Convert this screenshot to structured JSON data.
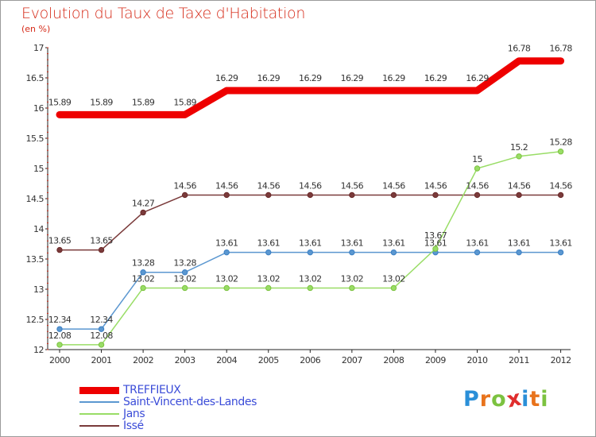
{
  "header": {
    "title": "Evolution du Taux de Taxe d'Habitation",
    "unit": "(en %)"
  },
  "logo": {
    "letters": [
      "P",
      "r",
      "o",
      "x",
      "i",
      "t",
      "i"
    ],
    "colors": [
      "#2a8fd8",
      "#e8731c",
      "#7cc240",
      "#e02d2d",
      "#2a8fd8",
      "#e8731c",
      "#7cc240"
    ]
  },
  "chart_data": {
    "type": "line",
    "title": "Evolution du Taux de Taxe d'Habitation",
    "ylabel": "(en %)",
    "xlabel": "",
    "x": [
      "2000",
      "2001",
      "2002",
      "2003",
      "2004",
      "2005",
      "2006",
      "2007",
      "2008",
      "2009",
      "2010",
      "2011",
      "2012"
    ],
    "ylim": [
      12,
      17
    ],
    "yticks": [
      "12",
      "12.5",
      "13",
      "13.5",
      "14",
      "14.5",
      "15",
      "15.5",
      "16",
      "16.5",
      "17"
    ],
    "grid": false,
    "legend_position": "bottom-left",
    "series": [
      {
        "name": "TREFFIEUX",
        "color": "#ee0000",
        "values": [
          15.89,
          15.89,
          15.89,
          15.89,
          16.29,
          16.29,
          16.29,
          16.29,
          16.29,
          16.29,
          16.29,
          16.78,
          16.78
        ],
        "labels": [
          "15.89",
          "15.89",
          "15.89",
          "15.89",
          "16.29",
          "16.29",
          "16.29",
          "16.29",
          "16.29",
          "16.29",
          "16.29",
          "16.78",
          "16.78"
        ]
      },
      {
        "name": "Saint-Vincent-des-Landes",
        "color": "#5b97d0",
        "values": [
          12.34,
          12.34,
          13.28,
          13.28,
          13.61,
          13.61,
          13.61,
          13.61,
          13.61,
          13.61,
          13.61,
          13.61,
          13.61
        ],
        "labels": [
          "12.34",
          "12.34",
          "13.28",
          "13.28",
          "13.61",
          "13.61",
          "13.61",
          "13.61",
          "13.61",
          "13.61",
          "13.61",
          "13.61",
          "13.61"
        ]
      },
      {
        "name": "Jans",
        "color": "#99dd66",
        "values": [
          12.08,
          12.08,
          13.02,
          13.02,
          13.02,
          13.02,
          13.02,
          13.02,
          13.02,
          13.67,
          15,
          15.2,
          15.28
        ],
        "labels": [
          "12.08",
          "12.08",
          "13.02",
          "13.02",
          "13.02",
          "13.02",
          "13.02",
          "13.02",
          "13.02",
          "13.67",
          "15",
          "15.2",
          "15.28"
        ]
      },
      {
        "name": "Issé",
        "color": "#7a3a3a",
        "values": [
          13.65,
          13.65,
          14.27,
          14.56,
          14.56,
          14.56,
          14.56,
          14.56,
          14.56,
          14.56,
          14.56,
          14.56,
          14.56
        ],
        "labels": [
          "13.65",
          "13.65",
          "14.27",
          "14.56",
          "14.56",
          "14.56",
          "14.56",
          "14.56",
          "14.56",
          "14.56",
          "14.56",
          "14.56",
          "14.56"
        ]
      }
    ]
  }
}
